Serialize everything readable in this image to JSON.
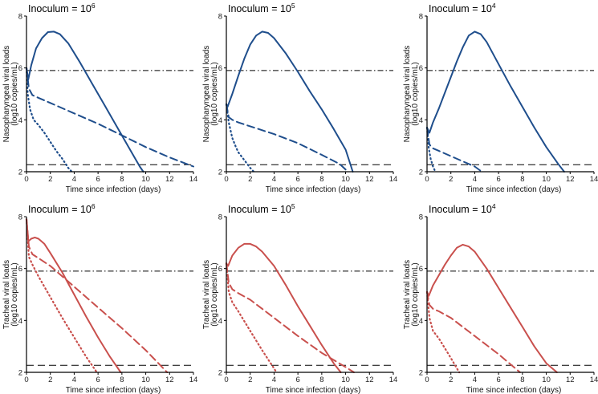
{
  "figure": {
    "colors": {
      "nasopharyngeal": "#1f4e8c",
      "tracheal": "#c9504d",
      "axis": "#000000",
      "reference": "#000000"
    }
  },
  "chart_data": [
    {
      "type": "line",
      "id": "naso-1e6",
      "title": "Inoculum = 10",
      "title_exponent": "6",
      "xlabel": "Time since infection (days)",
      "ylabel": "Nasopharyngeal viral loads",
      "ylabel2": "(log10 copies/mL)",
      "xlim": [
        0,
        14
      ],
      "ylim": [
        2,
        8
      ],
      "xticks": [
        "0",
        "2",
        "4",
        "6",
        "8",
        "10",
        "12",
        "14"
      ],
      "yticks": [
        "2",
        "4",
        "6",
        "8"
      ],
      "reference_lines": [
        {
          "style": "dashdot",
          "y": 5.9
        },
        {
          "style": "dashed",
          "y": 2.27
        }
      ],
      "series": [
        {
          "name": "solid",
          "style": "solid",
          "x": [
            0,
            0.15,
            0.4,
            0.8,
            1.3,
            1.8,
            2.3,
            2.8,
            3.5,
            4.5,
            5.5,
            6.5,
            7.5,
            8.5,
            9.5,
            9.8
          ],
          "y": [
            6.0,
            5.55,
            6.1,
            6.75,
            7.15,
            7.38,
            7.4,
            7.3,
            6.95,
            6.2,
            5.4,
            4.6,
            3.8,
            3.0,
            2.2,
            2.0
          ]
        },
        {
          "name": "dashed",
          "style": "dashed",
          "x": [
            0,
            0.2,
            0.5,
            1,
            2,
            4,
            6,
            8,
            10,
            12,
            14
          ],
          "y": [
            6.0,
            5.2,
            4.95,
            4.85,
            4.65,
            4.25,
            3.85,
            3.4,
            2.95,
            2.55,
            2.2
          ]
        },
        {
          "name": "dotted",
          "style": "dotted",
          "x": [
            0,
            0.1,
            0.3,
            0.6,
            1,
            1.5,
            2,
            2.5,
            3,
            3.5,
            3.8
          ],
          "y": [
            6.0,
            5.0,
            4.4,
            4.0,
            3.8,
            3.5,
            3.15,
            2.8,
            2.5,
            2.15,
            2.0
          ]
        }
      ]
    },
    {
      "type": "line",
      "id": "naso-1e5",
      "title": "Inoculum = 10",
      "title_exponent": "5",
      "xlabel": "Time since infection (days)",
      "ylabel": "Nasopharyngeal viral loads",
      "ylabel2": "(log10 copies/mL)",
      "xlim": [
        0,
        14
      ],
      "ylim": [
        2,
        8
      ],
      "xticks": [
        "0",
        "2",
        "4",
        "6",
        "8",
        "10",
        "12",
        "14"
      ],
      "yticks": [
        "2",
        "4",
        "6",
        "8"
      ],
      "reference_lines": [
        {
          "style": "dashdot",
          "y": 5.9
        },
        {
          "style": "dashed",
          "y": 2.27
        }
      ],
      "series": [
        {
          "name": "solid",
          "style": "solid",
          "x": [
            0,
            0.1,
            0.5,
            1,
            1.5,
            2,
            2.5,
            3,
            3.5,
            4,
            5,
            6,
            7,
            8,
            9,
            10,
            10.6
          ],
          "y": [
            4.6,
            4.5,
            5.0,
            5.7,
            6.35,
            6.9,
            7.25,
            7.4,
            7.35,
            7.15,
            6.55,
            5.85,
            5.1,
            4.4,
            3.65,
            2.85,
            2.0
          ]
        },
        {
          "name": "dashed",
          "style": "dashed",
          "x": [
            0,
            0.2,
            0.5,
            1,
            2,
            4,
            6,
            8,
            9.5,
            10.2
          ],
          "y": [
            4.6,
            4.1,
            4.0,
            3.9,
            3.75,
            3.45,
            3.1,
            2.65,
            2.3,
            2.0
          ]
        },
        {
          "name": "dotted",
          "style": "dotted",
          "x": [
            0,
            0.2,
            0.5,
            0.8,
            1,
            1.5,
            2,
            2.3
          ],
          "y": [
            4.6,
            3.9,
            3.3,
            2.95,
            2.75,
            2.45,
            2.15,
            2.0
          ]
        }
      ]
    },
    {
      "type": "line",
      "id": "naso-1e4",
      "title": "Inoculum = 10",
      "title_exponent": "4",
      "xlabel": "Time since infection (days)",
      "ylabel": "Nasopharyngeal viral loads",
      "ylabel2": "(log10 copies/mL)",
      "xlim": [
        0,
        14
      ],
      "ylim": [
        2,
        8
      ],
      "xticks": [
        "0",
        "2",
        "4",
        "6",
        "8",
        "10",
        "12",
        "14"
      ],
      "yticks": [
        "2",
        "4",
        "6",
        "8"
      ],
      "reference_lines": [
        {
          "style": "dashdot",
          "y": 5.9
        },
        {
          "style": "dashed",
          "y": 2.27
        }
      ],
      "series": [
        {
          "name": "solid",
          "style": "solid",
          "x": [
            0,
            0.2,
            0.5,
            1,
            1.5,
            2,
            2.5,
            3,
            3.5,
            4,
            4.5,
            5,
            6,
            7,
            8,
            9,
            10,
            11,
            11.5
          ],
          "y": [
            3.7,
            3.5,
            3.9,
            4.45,
            5.05,
            5.65,
            6.25,
            6.8,
            7.25,
            7.4,
            7.3,
            7.0,
            6.15,
            5.3,
            4.5,
            3.7,
            2.95,
            2.3,
            2.0
          ]
        },
        {
          "name": "dashed",
          "style": "dashed",
          "x": [
            0,
            0.2,
            0.5,
            1,
            2,
            3,
            4,
            4.6
          ],
          "y": [
            3.7,
            3.05,
            2.9,
            2.8,
            2.6,
            2.4,
            2.2,
            2.0
          ]
        },
        {
          "name": "dotted",
          "style": "dotted",
          "x": [
            0,
            0.15,
            0.3,
            0.5,
            0.7
          ],
          "y": [
            3.7,
            2.9,
            2.5,
            2.2,
            2.0
          ]
        }
      ]
    },
    {
      "type": "line",
      "id": "trach-1e6",
      "title": "Inoculum = 10",
      "title_exponent": "6",
      "xlabel": "Time since infection (days)",
      "ylabel": "Tracheal viral loads",
      "ylabel2": "(log10 copies/mL)",
      "xlim": [
        0,
        14
      ],
      "ylim": [
        2,
        8
      ],
      "xticks": [
        "0",
        "2",
        "4",
        "6",
        "8",
        "10",
        "12",
        "14"
      ],
      "yticks": [
        "2",
        "4",
        "6",
        "8"
      ],
      "reference_lines": [
        {
          "style": "dashdot",
          "y": 5.9
        },
        {
          "style": "dashed",
          "y": 2.27
        }
      ],
      "series": [
        {
          "name": "solid",
          "style": "solid",
          "x": [
            0,
            0.15,
            0.4,
            0.7,
            1,
            1.5,
            2,
            3,
            4,
            5,
            6,
            7,
            7.9
          ],
          "y": [
            7.9,
            7.05,
            7.15,
            7.2,
            7.15,
            6.95,
            6.6,
            5.85,
            5.0,
            4.15,
            3.35,
            2.6,
            2.0
          ]
        },
        {
          "name": "dashed",
          "style": "dashed",
          "x": [
            0,
            0.2,
            0.5,
            1,
            2,
            4,
            6,
            8,
            10,
            11.8
          ],
          "y": [
            7.9,
            6.85,
            6.55,
            6.4,
            6.1,
            5.3,
            4.5,
            3.7,
            2.85,
            2.0
          ]
        },
        {
          "name": "dotted",
          "style": "dotted",
          "x": [
            0,
            0.2,
            0.5,
            1,
            2,
            3,
            4,
            5,
            5.9
          ],
          "y": [
            7.9,
            6.45,
            6.15,
            5.7,
            4.9,
            4.1,
            3.35,
            2.6,
            2.0
          ]
        }
      ]
    },
    {
      "type": "line",
      "id": "trach-1e5",
      "title": "Inoculum = 10",
      "title_exponent": "5",
      "xlabel": "Time since infection (days)",
      "ylabel": "Tracheal viral loads",
      "ylabel2": "(log10 copies/mL)",
      "xlim": [
        0,
        14
      ],
      "ylim": [
        2,
        8
      ],
      "xticks": [
        "0",
        "2",
        "4",
        "6",
        "8",
        "10",
        "12",
        "14"
      ],
      "yticks": [
        "2",
        "4",
        "6",
        "8"
      ],
      "reference_lines": [
        {
          "style": "dashdot",
          "y": 5.9
        },
        {
          "style": "dashed",
          "y": 2.27
        }
      ],
      "series": [
        {
          "name": "solid",
          "style": "solid",
          "x": [
            0,
            0.15,
            0.5,
            1,
            1.5,
            2,
            2.5,
            3,
            4,
            5,
            6,
            7,
            8,
            9,
            9.6
          ],
          "y": [
            6.2,
            6.1,
            6.5,
            6.8,
            6.95,
            6.95,
            6.85,
            6.65,
            6.1,
            5.35,
            4.55,
            3.8,
            3.05,
            2.35,
            2.0
          ]
        },
        {
          "name": "dashed",
          "style": "dashed",
          "x": [
            0,
            0.2,
            0.5,
            1,
            2,
            4,
            6,
            8,
            10,
            10.7
          ],
          "y": [
            6.2,
            5.45,
            5.2,
            5.05,
            4.8,
            4.1,
            3.4,
            2.75,
            2.2,
            2.0
          ]
        },
        {
          "name": "dotted",
          "style": "dotted",
          "x": [
            0,
            0.2,
            0.5,
            1,
            2,
            3,
            4,
            4.2
          ],
          "y": [
            6.2,
            5.1,
            4.7,
            4.35,
            3.6,
            2.85,
            2.15,
            2.0
          ]
        }
      ]
    },
    {
      "type": "line",
      "id": "trach-1e4",
      "title": "Inoculum = 10",
      "title_exponent": "4",
      "xlabel": "Time since infection (days)",
      "ylabel": "Tracheal viral loads",
      "ylabel2": "(log10 copies/mL)",
      "xlim": [
        0,
        14
      ],
      "ylim": [
        2,
        8
      ],
      "xticks": [
        "0",
        "2",
        "4",
        "6",
        "8",
        "10",
        "12",
        "14"
      ],
      "yticks": [
        "2",
        "4",
        "6",
        "8"
      ],
      "reference_lines": [
        {
          "style": "dashdot",
          "y": 5.9
        },
        {
          "style": "dashed",
          "y": 2.27
        }
      ],
      "series": [
        {
          "name": "solid",
          "style": "solid",
          "x": [
            0,
            0.15,
            0.5,
            1,
            1.5,
            2,
            2.5,
            3,
            3.5,
            4,
            5,
            6,
            7,
            8,
            9,
            10,
            10.9
          ],
          "y": [
            5.1,
            4.95,
            5.35,
            5.75,
            6.15,
            6.5,
            6.8,
            6.92,
            6.85,
            6.65,
            6.0,
            5.25,
            4.5,
            3.75,
            3.0,
            2.35,
            2.0
          ]
        },
        {
          "name": "dashed",
          "style": "dashed",
          "x": [
            0,
            0.2,
            0.5,
            1,
            2,
            4,
            6,
            7.8
          ],
          "y": [
            5.1,
            4.6,
            4.45,
            4.35,
            4.1,
            3.4,
            2.7,
            2.0
          ]
        },
        {
          "name": "dotted",
          "style": "dotted",
          "x": [
            0,
            0.2,
            0.5,
            1,
            2,
            2.7
          ],
          "y": [
            5.1,
            4.1,
            3.6,
            3.3,
            2.55,
            2.0
          ]
        }
      ]
    }
  ]
}
